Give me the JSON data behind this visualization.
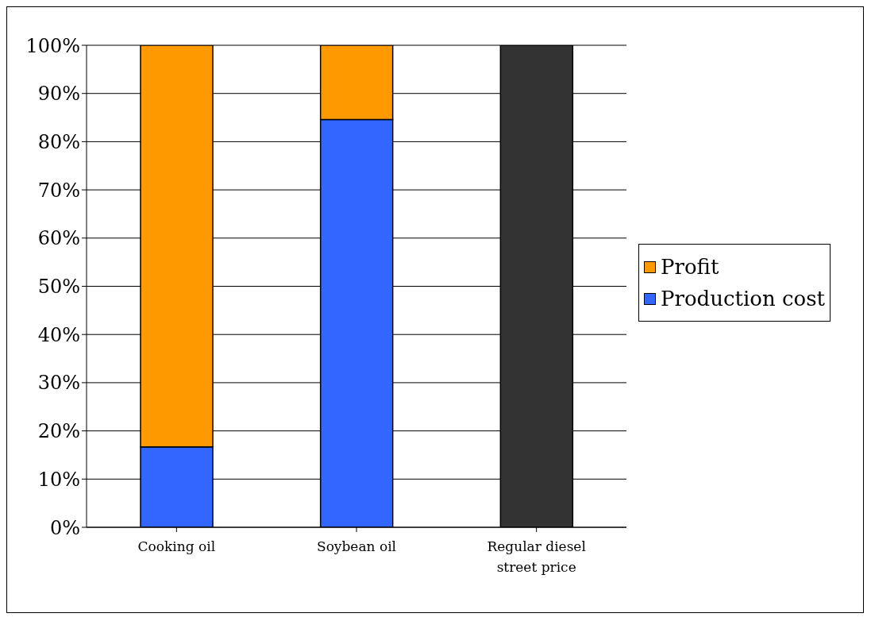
{
  "chart_data": {
    "type": "bar",
    "stacked": true,
    "categories": [
      "Cooking oil",
      "Soybean oil",
      "Regular diesel street price"
    ],
    "series": [
      {
        "name": "Production cost",
        "color": "#3366ff",
        "values": [
          16.7,
          84.6,
          null
        ]
      },
      {
        "name": "Profit",
        "color": "#ff9900",
        "values": [
          83.3,
          15.4,
          null
        ]
      },
      {
        "color": "#333333",
        "values": [
          null,
          null,
          100
        ]
      }
    ],
    "ylim": [
      0,
      100
    ],
    "yticks": [
      {
        "value": 0,
        "label": "0%"
      },
      {
        "value": 10,
        "label": "10%"
      },
      {
        "value": 20,
        "label": "20%"
      },
      {
        "value": 30,
        "label": "30%"
      },
      {
        "value": 40,
        "label": "40%"
      },
      {
        "value": 50,
        "label": "50%"
      },
      {
        "value": 60,
        "label": "60%"
      },
      {
        "value": 70,
        "label": "70%"
      },
      {
        "value": 80,
        "label": "80%"
      },
      {
        "value": 90,
        "label": "90%"
      },
      {
        "value": 100,
        "label": "100%"
      }
    ],
    "grid": "y",
    "legend": "right"
  }
}
